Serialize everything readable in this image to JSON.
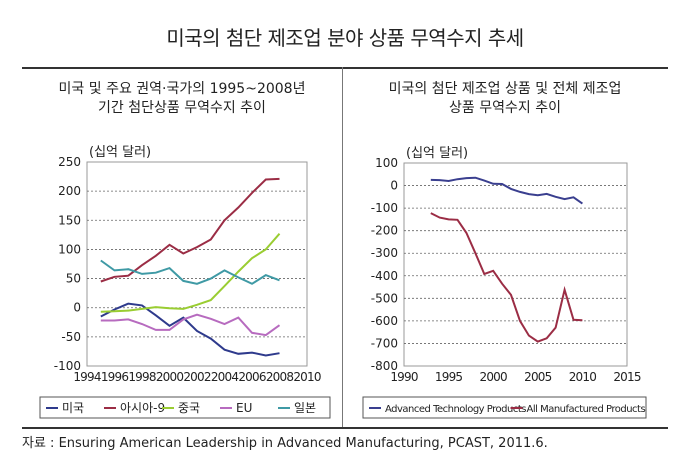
{
  "title": "미국의 첨단 제조업 분야 상품 무역수지 추세",
  "source": "자료 : Ensuring American Leadership in Advanced Manufacturing, PCAST, 2011.6.",
  "chart_data": [
    {
      "type": "line",
      "subtitle_line1": "미국 및 주요 권역·국가의 1995~2008년",
      "subtitle_line2": "기간 첨단상품 무역수지 추이",
      "ylabel": "(십억 달러)",
      "xlim": [
        1994,
        2010
      ],
      "ylim": [
        -100,
        250
      ],
      "xticks": [
        1994,
        1996,
        1998,
        2000,
        2002,
        2004,
        2006,
        2008,
        2010
      ],
      "yticks": [
        -100,
        -50,
        0,
        50,
        100,
        150,
        200,
        250
      ],
      "grid": "horizontal dotted",
      "legend": "bottom",
      "x": [
        1995,
        1996,
        1997,
        1998,
        1999,
        2000,
        2001,
        2002,
        2003,
        2004,
        2005,
        2006,
        2007,
        2008
      ],
      "series": [
        {
          "name": "미국",
          "color": "#2e3a8c",
          "values": [
            -15,
            -3,
            7,
            4,
            -13,
            -31,
            -17,
            -40,
            -53,
            -72,
            -79,
            -77,
            -82,
            -78
          ]
        },
        {
          "name": "아시아-9",
          "color": "#9b2d45",
          "values": [
            45,
            53,
            55,
            73,
            89,
            108,
            93,
            104,
            117,
            150,
            172,
            197,
            220,
            221
          ]
        },
        {
          "name": "중국",
          "color": "#9acd32",
          "values": [
            -7,
            -6,
            -5,
            -2,
            1,
            -1,
            -2,
            5,
            13,
            37,
            62,
            85,
            100,
            127
          ]
        },
        {
          "name": "EU",
          "color": "#b76bbf",
          "values": [
            -22,
            -22,
            -20,
            -28,
            -38,
            -38,
            -20,
            -12,
            -19,
            -28,
            -17,
            -43,
            -47,
            -30
          ]
        },
        {
          "name": "일본",
          "color": "#3f9aa5",
          "values": [
            81,
            64,
            66,
            58,
            60,
            68,
            46,
            41,
            50,
            64,
            52,
            41,
            56,
            47
          ]
        }
      ]
    },
    {
      "type": "line",
      "subtitle_line1": "미국의 첨단 제조업 상품 및 전체 제조업",
      "subtitle_line2": "상품 무역수지 추이",
      "ylabel": "(십억 달러)",
      "xlim": [
        1990,
        2015
      ],
      "ylim": [
        -800,
        100
      ],
      "xticks": [
        1990,
        1995,
        2000,
        2005,
        2010,
        2015
      ],
      "yticks": [
        -800,
        -700,
        -600,
        -500,
        -400,
        -300,
        -200,
        -100,
        0,
        100
      ],
      "grid": "horizontal dotted",
      "legend": "bottom",
      "x": [
        1993,
        1994,
        1995,
        1996,
        1997,
        1998,
        1999,
        2000,
        2001,
        2002,
        2003,
        2004,
        2005,
        2006,
        2007,
        2008,
        2009,
        2010
      ],
      "series": [
        {
          "name": "Advanced Technology Products",
          "color": "#3a3f8f",
          "values": [
            25,
            24,
            20,
            28,
            33,
            35,
            22,
            8,
            7,
            -15,
            -28,
            -38,
            -43,
            -37,
            -50,
            -60,
            -52,
            -80
          ]
        },
        {
          "name": "All Manufactured Products",
          "color": "#9b2d45",
          "values": [
            -122,
            -142,
            -150,
            -152,
            -210,
            -300,
            -392,
            -378,
            -435,
            -485,
            -600,
            -665,
            -692,
            -677,
            -630,
            -462,
            -595,
            -597
          ]
        }
      ]
    }
  ]
}
